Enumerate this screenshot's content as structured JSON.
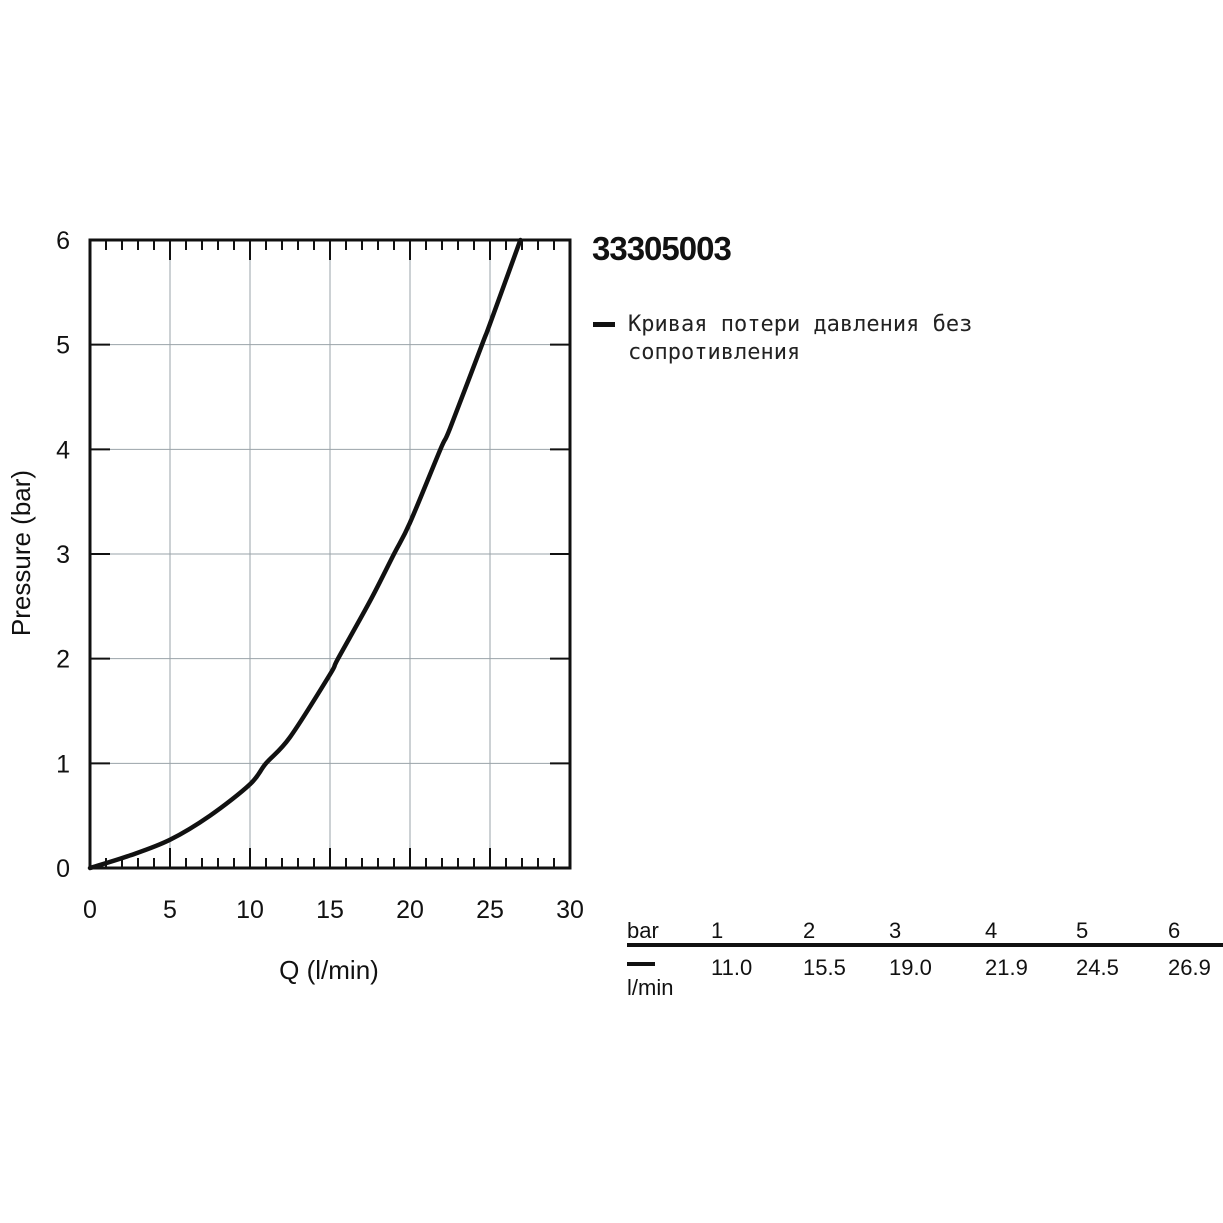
{
  "chart_data": {
    "type": "line",
    "xlabel": "Q (l/min)",
    "ylabel": "Pressure (bar)",
    "xlim": [
      0,
      30
    ],
    "ylim": [
      0,
      6
    ],
    "xticks": [
      "0",
      "5",
      "10",
      "15",
      "20",
      "25",
      "30"
    ],
    "yticks": [
      "0",
      "1",
      "2",
      "3",
      "4",
      "5",
      "6"
    ],
    "grid": true,
    "series": [
      {
        "name": "Кривая потери давления без сопротивления",
        "color": "#111111",
        "x": [
          0,
          2.5,
          5,
          7.5,
          10,
          11.0,
          12.5,
          15,
          15.5,
          17.5,
          19.0,
          20,
          21.9,
          22.5,
          24.5,
          25,
          26.9
        ],
        "y": [
          0,
          0.12,
          0.27,
          0.5,
          0.8,
          1.0,
          1.25,
          1.85,
          2.0,
          2.55,
          3.0,
          3.3,
          4.0,
          4.2,
          5.0,
          5.2,
          6.0
        ]
      }
    ]
  },
  "header": {
    "product_code": "33305003"
  },
  "legend": {
    "label": "Кривая потери давления без сопротивления"
  },
  "table": {
    "pressure_label": "bar",
    "flow_label": "l/min",
    "columns": [
      {
        "bar": "1",
        "flow": "11.0"
      },
      {
        "bar": "2",
        "flow": "15.5"
      },
      {
        "bar": "3",
        "flow": "19.0"
      },
      {
        "bar": "4",
        "flow": "21.9"
      },
      {
        "bar": "5",
        "flow": "24.5"
      },
      {
        "bar": "6",
        "flow": "26.9"
      }
    ]
  }
}
